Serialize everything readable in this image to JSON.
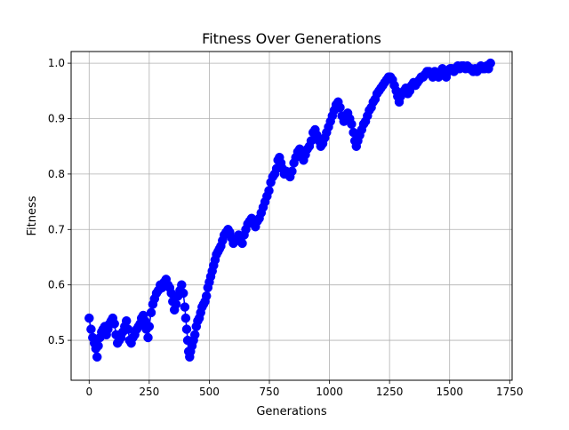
{
  "chart_data": {
    "type": "scatter",
    "title": "Fitness Over Generations",
    "xlabel": "Generations",
    "ylabel": "Fitness",
    "xlim": [
      -75,
      1760
    ],
    "ylim": [
      0.428,
      1.021
    ],
    "xticks": [
      0,
      250,
      500,
      750,
      1000,
      1250,
      1500,
      1750
    ],
    "yticks": [
      0.5,
      0.6,
      0.7,
      0.8,
      0.9,
      1.0
    ],
    "xtick_labels": [
      "0",
      "250",
      "500",
      "750",
      "1000",
      "1250",
      "1500",
      "1750"
    ],
    "ytick_labels": [
      "0.5",
      "0.6",
      "0.7",
      "0.8",
      "0.9",
      "1.0"
    ],
    "grid": true,
    "legend": "none",
    "series": [
      {
        "color": "#0000ff",
        "marker": "circle",
        "line": "connected",
        "points": [
          [
            0,
            0.54
          ],
          [
            8,
            0.52
          ],
          [
            15,
            0.505
          ],
          [
            22,
            0.495
          ],
          [
            28,
            0.485
          ],
          [
            33,
            0.47
          ],
          [
            38,
            0.49
          ],
          [
            45,
            0.505
          ],
          [
            52,
            0.515
          ],
          [
            58,
            0.52
          ],
          [
            65,
            0.525
          ],
          [
            72,
            0.51
          ],
          [
            78,
            0.52
          ],
          [
            85,
            0.53
          ],
          [
            92,
            0.535
          ],
          [
            98,
            0.54
          ],
          [
            105,
            0.53
          ],
          [
            112,
            0.51
          ],
          [
            118,
            0.495
          ],
          [
            125,
            0.5
          ],
          [
            132,
            0.505
          ],
          [
            140,
            0.515
          ],
          [
            148,
            0.525
          ],
          [
            155,
            0.535
          ],
          [
            162,
            0.52
          ],
          [
            168,
            0.5
          ],
          [
            175,
            0.495
          ],
          [
            182,
            0.505
          ],
          [
            190,
            0.51
          ],
          [
            198,
            0.52
          ],
          [
            205,
            0.525
          ],
          [
            212,
            0.53
          ],
          [
            218,
            0.54
          ],
          [
            225,
            0.545
          ],
          [
            232,
            0.535
          ],
          [
            238,
            0.52
          ],
          [
            245,
            0.505
          ],
          [
            250,
            0.525
          ],
          [
            258,
            0.55
          ],
          [
            265,
            0.565
          ],
          [
            272,
            0.575
          ],
          [
            280,
            0.585
          ],
          [
            288,
            0.59
          ],
          [
            296,
            0.6
          ],
          [
            304,
            0.595
          ],
          [
            312,
            0.605
          ],
          [
            320,
            0.61
          ],
          [
            328,
            0.6
          ],
          [
            335,
            0.595
          ],
          [
            342,
            0.585
          ],
          [
            348,
            0.57
          ],
          [
            355,
            0.555
          ],
          [
            362,
            0.565
          ],
          [
            370,
            0.58
          ],
          [
            378,
            0.59
          ],
          [
            385,
            0.6
          ],
          [
            392,
            0.585
          ],
          [
            398,
            0.56
          ],
          [
            402,
            0.54
          ],
          [
            406,
            0.52
          ],
          [
            410,
            0.5
          ],
          [
            414,
            0.48
          ],
          [
            418,
            0.47
          ],
          [
            422,
            0.48
          ],
          [
            428,
            0.49
          ],
          [
            434,
            0.5
          ],
          [
            440,
            0.51
          ],
          [
            446,
            0.525
          ],
          [
            452,
            0.535
          ],
          [
            458,
            0.54
          ],
          [
            464,
            0.55
          ],
          [
            470,
            0.56
          ],
          [
            476,
            0.565
          ],
          [
            482,
            0.57
          ],
          [
            488,
            0.58
          ],
          [
            494,
            0.595
          ],
          [
            500,
            0.605
          ],
          [
            506,
            0.615
          ],
          [
            512,
            0.625
          ],
          [
            518,
            0.635
          ],
          [
            524,
            0.645
          ],
          [
            530,
            0.655
          ],
          [
            536,
            0.66
          ],
          [
            542,
            0.665
          ],
          [
            548,
            0.67
          ],
          [
            555,
            0.68
          ],
          [
            562,
            0.69
          ],
          [
            570,
            0.695
          ],
          [
            578,
            0.7
          ],
          [
            585,
            0.695
          ],
          [
            592,
            0.685
          ],
          [
            600,
            0.675
          ],
          [
            608,
            0.68
          ],
          [
            615,
            0.685
          ],
          [
            622,
            0.69
          ],
          [
            630,
            0.68
          ],
          [
            637,
            0.675
          ],
          [
            645,
            0.69
          ],
          [
            652,
            0.7
          ],
          [
            660,
            0.71
          ],
          [
            668,
            0.715
          ],
          [
            676,
            0.72
          ],
          [
            684,
            0.715
          ],
          [
            692,
            0.705
          ],
          [
            700,
            0.715
          ],
          [
            708,
            0.72
          ],
          [
            716,
            0.73
          ],
          [
            724,
            0.74
          ],
          [
            732,
            0.75
          ],
          [
            740,
            0.76
          ],
          [
            748,
            0.77
          ],
          [
            756,
            0.785
          ],
          [
            764,
            0.795
          ],
          [
            772,
            0.8
          ],
          [
            780,
            0.81
          ],
          [
            786,
            0.825
          ],
          [
            792,
            0.83
          ],
          [
            798,
            0.82
          ],
          [
            804,
            0.81
          ],
          [
            812,
            0.8
          ],
          [
            820,
            0.805
          ],
          [
            828,
            0.8
          ],
          [
            836,
            0.795
          ],
          [
            844,
            0.805
          ],
          [
            852,
            0.82
          ],
          [
            860,
            0.83
          ],
          [
            868,
            0.84
          ],
          [
            876,
            0.845
          ],
          [
            884,
            0.835
          ],
          [
            892,
            0.825
          ],
          [
            900,
            0.835
          ],
          [
            908,
            0.845
          ],
          [
            916,
            0.85
          ],
          [
            924,
            0.86
          ],
          [
            932,
            0.875
          ],
          [
            940,
            0.88
          ],
          [
            948,
            0.87
          ],
          [
            956,
            0.86
          ],
          [
            964,
            0.85
          ],
          [
            972,
            0.855
          ],
          [
            980,
            0.865
          ],
          [
            988,
            0.875
          ],
          [
            996,
            0.885
          ],
          [
            1004,
            0.895
          ],
          [
            1012,
            0.905
          ],
          [
            1020,
            0.915
          ],
          [
            1028,
            0.925
          ],
          [
            1036,
            0.93
          ],
          [
            1044,
            0.92
          ],
          [
            1052,
            0.905
          ],
          [
            1060,
            0.895
          ],
          [
            1068,
            0.905
          ],
          [
            1076,
            0.91
          ],
          [
            1084,
            0.9
          ],
          [
            1092,
            0.89
          ],
          [
            1100,
            0.875
          ],
          [
            1106,
            0.86
          ],
          [
            1112,
            0.85
          ],
          [
            1118,
            0.86
          ],
          [
            1126,
            0.87
          ],
          [
            1134,
            0.88
          ],
          [
            1142,
            0.89
          ],
          [
            1150,
            0.895
          ],
          [
            1158,
            0.905
          ],
          [
            1166,
            0.915
          ],
          [
            1174,
            0.92
          ],
          [
            1182,
            0.93
          ],
          [
            1190,
            0.935
          ],
          [
            1198,
            0.945
          ],
          [
            1206,
            0.95
          ],
          [
            1214,
            0.955
          ],
          [
            1222,
            0.96
          ],
          [
            1230,
            0.965
          ],
          [
            1238,
            0.97
          ],
          [
            1246,
            0.975
          ],
          [
            1254,
            0.975
          ],
          [
            1262,
            0.97
          ],
          [
            1270,
            0.96
          ],
          [
            1278,
            0.95
          ],
          [
            1284,
            0.94
          ],
          [
            1290,
            0.93
          ],
          [
            1296,
            0.94
          ],
          [
            1302,
            0.945
          ],
          [
            1310,
            0.95
          ],
          [
            1318,
            0.955
          ],
          [
            1326,
            0.945
          ],
          [
            1334,
            0.95
          ],
          [
            1342,
            0.96
          ],
          [
            1350,
            0.965
          ],
          [
            1358,
            0.96
          ],
          [
            1366,
            0.965
          ],
          [
            1374,
            0.97
          ],
          [
            1382,
            0.975
          ],
          [
            1390,
            0.975
          ],
          [
            1398,
            0.98
          ],
          [
            1406,
            0.985
          ],
          [
            1414,
            0.985
          ],
          [
            1422,
            0.98
          ],
          [
            1430,
            0.975
          ],
          [
            1438,
            0.985
          ],
          [
            1446,
            0.98
          ],
          [
            1454,
            0.975
          ],
          [
            1462,
            0.985
          ],
          [
            1470,
            0.99
          ],
          [
            1478,
            0.98
          ],
          [
            1486,
            0.975
          ],
          [
            1494,
            0.985
          ],
          [
            1502,
            0.99
          ],
          [
            1510,
            0.99
          ],
          [
            1518,
            0.985
          ],
          [
            1526,
            0.99
          ],
          [
            1534,
            0.995
          ],
          [
            1542,
            0.99
          ],
          [
            1550,
            0.995
          ],
          [
            1558,
            0.995
          ],
          [
            1566,
            0.99
          ],
          [
            1574,
            0.995
          ],
          [
            1582,
            0.99
          ],
          [
            1590,
            0.99
          ],
          [
            1598,
            0.985
          ],
          [
            1606,
            0.99
          ],
          [
            1614,
            0.985
          ],
          [
            1622,
            0.99
          ],
          [
            1630,
            0.995
          ],
          [
            1638,
            0.99
          ],
          [
            1646,
            0.99
          ],
          [
            1654,
            0.995
          ],
          [
            1662,
            0.99
          ],
          [
            1670,
            1.0
          ]
        ]
      }
    ]
  }
}
